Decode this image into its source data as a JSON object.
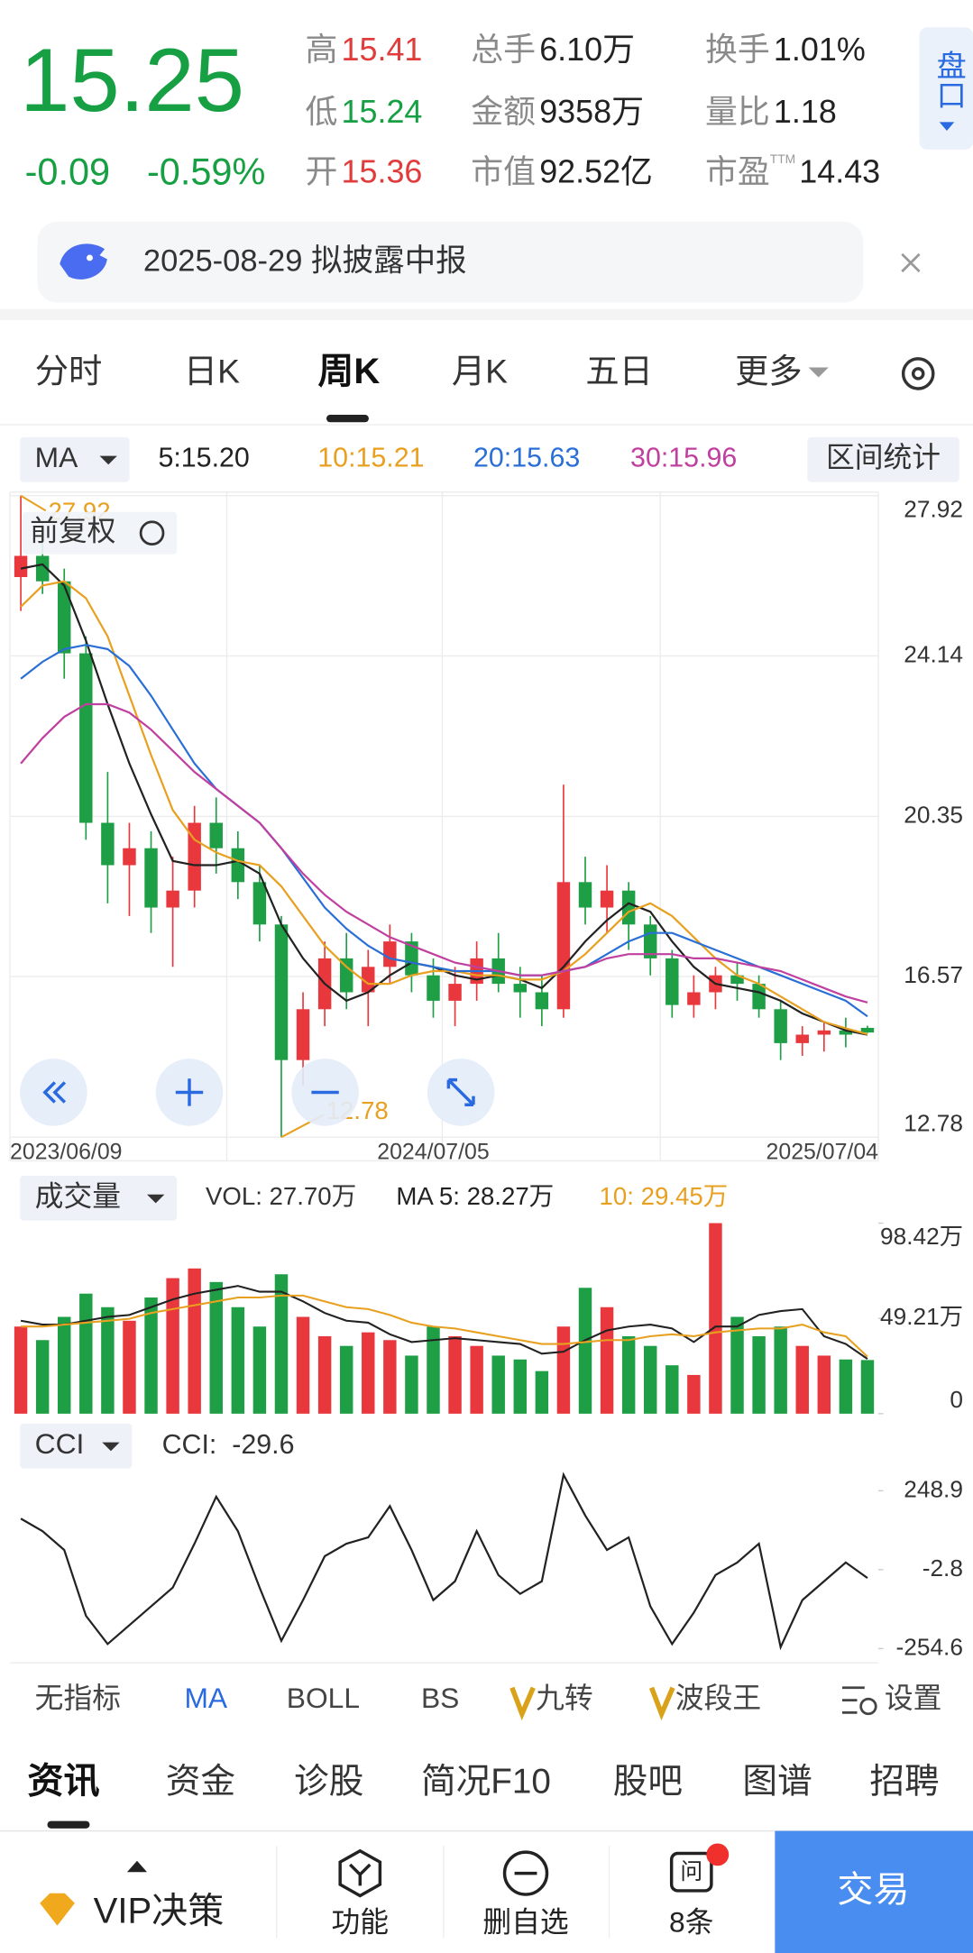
{
  "quote": {
    "price": "15.25",
    "change": "-0.09",
    "change_pct": "-0.59%",
    "stats": [
      {
        "label": "高",
        "value": "15.41",
        "color": "#e03c3c"
      },
      {
        "label": "总手",
        "value": "6.10万",
        "color": "#222222"
      },
      {
        "label": "换手",
        "value": "1.01%",
        "color": "#222222"
      },
      {
        "label": "低",
        "value": "15.24",
        "color": "#17a043"
      },
      {
        "label": "金额",
        "value": "9358万",
        "color": "#222222"
      },
      {
        "label": "量比",
        "value": "1.18",
        "color": "#222222"
      },
      {
        "label": "开",
        "value": "15.36",
        "color": "#e03c3c"
      },
      {
        "label": "市值",
        "value": "92.52亿",
        "color": "#222222"
      },
      {
        "label": "市盈",
        "sup": "TTM",
        "value": "14.43",
        "color": "#222222"
      }
    ]
  },
  "panel_button": "盘口",
  "notice": "2025-08-29 拟披露中报",
  "tabs": [
    "分时",
    "日K",
    "周K",
    "月K",
    "五日",
    "更多"
  ],
  "chart_data": [
    {
      "type": "candlestick",
      "indicator": "MA",
      "range_button": "区间统计",
      "adjust": "前复权",
      "up_color": "#e8383d",
      "down_color": "#1e9e45",
      "grid": true,
      "categories": [
        "2023/06/09",
        null,
        null,
        null,
        null,
        null,
        null,
        null,
        null,
        null,
        null,
        null,
        null,
        null,
        null,
        null,
        null,
        null,
        null,
        "2024/07/05",
        null,
        null,
        null,
        null,
        null,
        null,
        null,
        null,
        null,
        null,
        null,
        null,
        null,
        null,
        null,
        null,
        null,
        null,
        "2025/07/04",
        null
      ],
      "open": [
        26.0,
        26.5,
        25.9,
        24.2,
        20.2,
        19.2,
        19.6,
        18.2,
        18.6,
        20.2,
        19.6,
        18.8,
        17.8,
        14.6,
        15.8,
        17.0,
        16.2,
        16.8,
        17.4,
        16.6,
        16.0,
        16.4,
        17.0,
        16.4,
        16.2,
        15.8,
        18.8,
        18.2,
        18.6,
        17.8,
        17.0,
        15.9,
        16.2,
        16.6,
        16.4,
        15.8,
        15.0,
        15.2,
        15.3,
        15.36
      ],
      "high": [
        27.92,
        27.3,
        26.2,
        24.6,
        21.4,
        20.2,
        20.0,
        19.4,
        20.6,
        20.8,
        20.0,
        19.2,
        18.0,
        16.2,
        17.4,
        17.6,
        17.2,
        17.8,
        17.6,
        17.0,
        16.8,
        17.4,
        17.6,
        16.8,
        16.6,
        21.1,
        19.4,
        19.2,
        18.8,
        18.0,
        17.2,
        16.6,
        16.8,
        16.9,
        16.6,
        16.0,
        15.4,
        15.5,
        15.6,
        15.41
      ],
      "low": [
        25.2,
        25.6,
        23.6,
        19.8,
        18.3,
        18.0,
        17.6,
        16.8,
        18.2,
        19.0,
        18.4,
        17.4,
        12.78,
        14.0,
        15.4,
        15.8,
        15.4,
        16.4,
        16.2,
        15.6,
        15.4,
        16.0,
        16.2,
        15.6,
        15.4,
        15.6,
        17.8,
        17.6,
        17.2,
        16.6,
        15.6,
        15.6,
        15.8,
        16.0,
        15.6,
        14.6,
        14.7,
        14.8,
        14.9,
        15.24
      ],
      "close": [
        26.5,
        25.9,
        24.2,
        20.2,
        19.2,
        19.6,
        18.2,
        18.6,
        20.2,
        19.6,
        18.8,
        17.8,
        14.6,
        15.8,
        17.0,
        16.2,
        16.8,
        17.4,
        16.6,
        16.0,
        16.4,
        17.0,
        16.4,
        16.2,
        15.8,
        18.8,
        18.2,
        18.6,
        17.8,
        17.0,
        15.9,
        16.2,
        16.6,
        16.4,
        15.8,
        15.0,
        15.2,
        15.3,
        15.2,
        15.25
      ],
      "series": [
        {
          "name": "5:15.20",
          "color": "#222222",
          "values": [
            26.2,
            26.3,
            25.8,
            24.5,
            23.0,
            21.6,
            20.4,
            19.3,
            19.2,
            19.2,
            19.3,
            19.0,
            17.8,
            17.0,
            16.4,
            16.0,
            16.2,
            16.6,
            16.9,
            16.8,
            16.6,
            16.5,
            16.6,
            16.5,
            16.3,
            16.8,
            17.4,
            17.9,
            18.3,
            18.1,
            17.4,
            16.8,
            16.4,
            16.3,
            16.2,
            16.0,
            15.7,
            15.5,
            15.3,
            15.2
          ]
        },
        {
          "name": "10:15.21",
          "color": "#e8a020",
          "values": [
            25.3,
            25.8,
            25.9,
            25.5,
            24.6,
            23.2,
            21.8,
            20.5,
            19.8,
            19.5,
            19.3,
            19.2,
            18.7,
            18.0,
            17.3,
            16.8,
            16.4,
            16.4,
            16.6,
            16.7,
            16.7,
            16.6,
            16.6,
            16.5,
            16.5,
            16.7,
            17.1,
            17.6,
            18.1,
            18.3,
            18.0,
            17.5,
            17.0,
            16.6,
            16.4,
            16.1,
            15.8,
            15.5,
            15.35,
            15.21
          ]
        },
        {
          "name": "20:15.63",
          "color": "#2a6fd6",
          "values": [
            23.6,
            24.0,
            24.3,
            24.4,
            24.3,
            23.9,
            23.2,
            22.4,
            21.6,
            21.0,
            20.6,
            20.2,
            19.6,
            18.9,
            18.2,
            17.7,
            17.3,
            17.0,
            16.9,
            16.8,
            16.7,
            16.7,
            16.7,
            16.6,
            16.6,
            16.7,
            16.8,
            17.1,
            17.4,
            17.6,
            17.6,
            17.4,
            17.2,
            17.0,
            16.8,
            16.6,
            16.4,
            16.2,
            16.0,
            15.63
          ]
        },
        {
          "name": "30:15.96",
          "color": "#c040a0",
          "values": [
            21.6,
            22.2,
            22.7,
            23.0,
            23.0,
            22.8,
            22.4,
            21.9,
            21.4,
            21.0,
            20.6,
            20.2,
            19.6,
            19.0,
            18.5,
            18.1,
            17.8,
            17.5,
            17.3,
            17.1,
            16.9,
            16.8,
            16.7,
            16.6,
            16.6,
            16.7,
            16.8,
            17.0,
            17.1,
            17.1,
            17.1,
            17.0,
            17.0,
            16.9,
            16.8,
            16.7,
            16.5,
            16.3,
            16.1,
            15.96
          ]
        }
      ],
      "ylim": [
        12.78,
        27.92
      ],
      "yticks": [
        27.92,
        24.14,
        20.35,
        16.57,
        12.78
      ]
    },
    {
      "type": "bar",
      "indicator": "成交量",
      "values_name": "VOL: 27.70万",
      "values": [
        45,
        38,
        50,
        62,
        55,
        48,
        60,
        70,
        75,
        68,
        55,
        45,
        72,
        50,
        40,
        35,
        42,
        38,
        30,
        45,
        40,
        35,
        30,
        28,
        22,
        45,
        65,
        55,
        40,
        35,
        25,
        20,
        98.42,
        50,
        40,
        45,
        35,
        30,
        28,
        27.7
      ],
      "series": [
        {
          "name": "MA 5: 28.27万",
          "color": "#222222",
          "values": [
            48,
            46,
            46,
            48,
            50,
            51,
            55,
            59,
            62,
            64,
            66,
            63,
            63,
            58,
            52,
            48,
            47,
            41,
            37,
            38,
            39,
            38,
            37,
            36,
            31,
            32,
            38,
            43,
            45,
            46,
            44,
            37,
            45,
            45,
            51,
            53,
            54,
            40,
            36,
            28.27
          ]
        },
        {
          "name": "10: 29.45万",
          "color": "#e8a020",
          "values": [
            45,
            45,
            46,
            47,
            48,
            49,
            52,
            54,
            56,
            58,
            60,
            60,
            61,
            61,
            58,
            55,
            54,
            51,
            47,
            45,
            44,
            42,
            40,
            38,
            36,
            36,
            37,
            38,
            38,
            40,
            41,
            40,
            42,
            43,
            44,
            44,
            46,
            42,
            40,
            29.45
          ]
        }
      ],
      "ylim": [
        0,
        98.42
      ],
      "yticks": [
        {
          "value": 98.42,
          "label": "98.42万"
        },
        {
          "value": 49.21,
          "label": "49.21万"
        },
        0
      ]
    },
    {
      "type": "line",
      "indicator": "CCI",
      "legend": "CCI:  -29.6",
      "color": "#222222",
      "values": [
        160,
        120,
        60,
        -150,
        -240,
        -180,
        -120,
        -60,
        80,
        230,
        120,
        -60,
        -230,
        -100,
        40,
        80,
        100,
        200,
        60,
        -100,
        -40,
        120,
        -20,
        -80,
        -40,
        300,
        170,
        60,
        100,
        -120,
        -240,
        -140,
        -20,
        20,
        80,
        -250,
        -100,
        -40,
        20,
        -29.6
      ],
      "ylim": [
        -300,
        316
      ],
      "yticks": [
        248.9,
        -2.8,
        -254.6
      ]
    }
  ],
  "indicators": [
    "无指标",
    "MA",
    "BOLL",
    "BS",
    "九转",
    "波段王",
    "设置"
  ],
  "info_tabs": [
    "资讯",
    "资金",
    "诊股",
    "简况F10",
    "股吧",
    "图谱",
    "招聘"
  ],
  "bottom_bar": {
    "vip": "VIP决策",
    "function": "功能",
    "remove": "删自选",
    "ask_icon": "问",
    "messages": "8条",
    "trade": "交易"
  }
}
